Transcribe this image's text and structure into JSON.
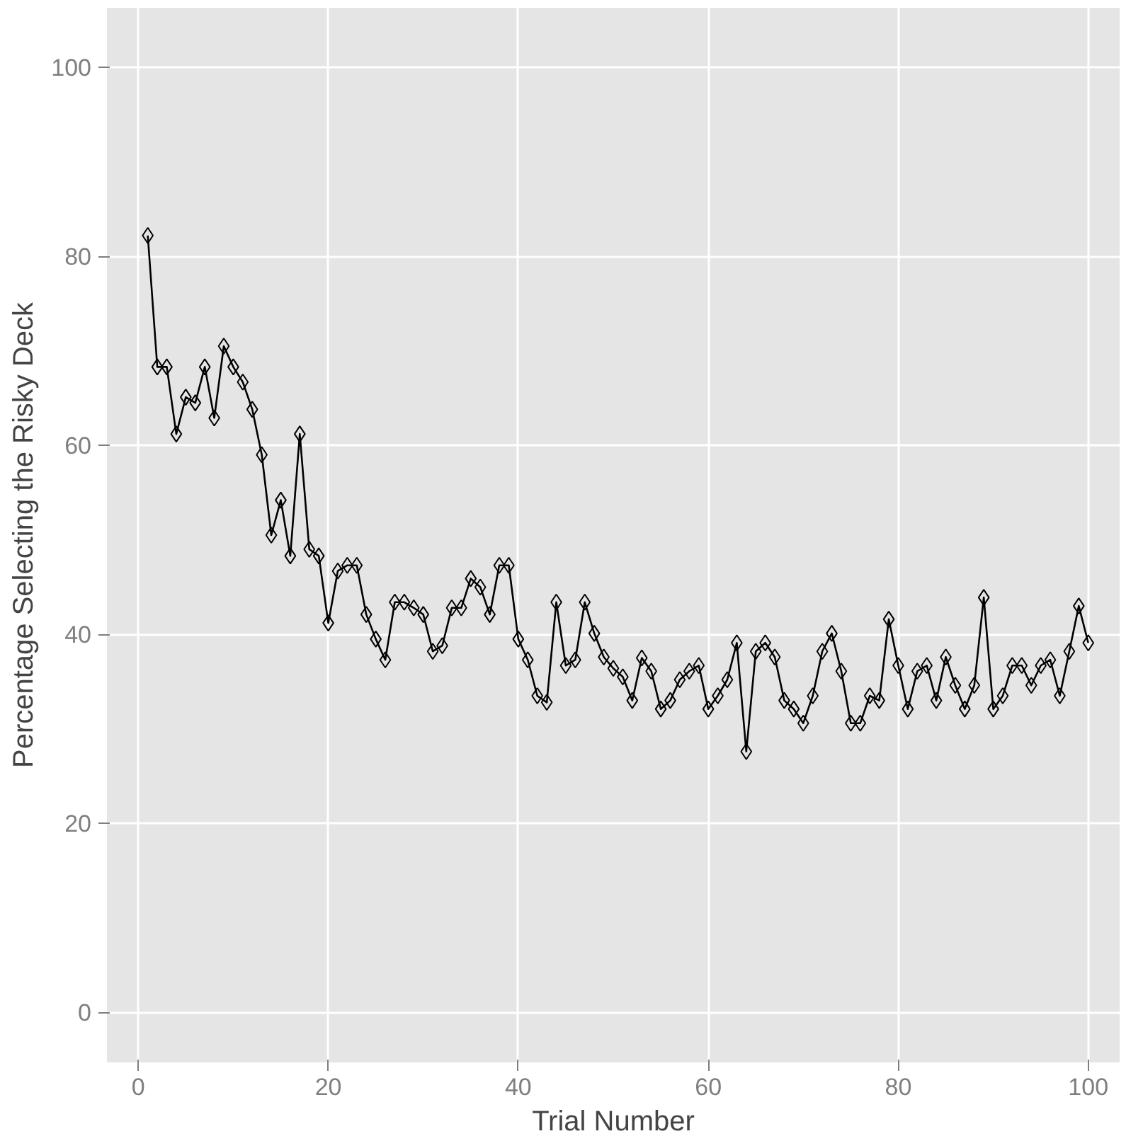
{
  "chart_data": {
    "type": "line",
    "xlabel": "Trial Number",
    "ylabel": "Percentage Selecting the Risky Deck",
    "x": [
      1,
      2,
      3,
      4,
      5,
      6,
      7,
      8,
      9,
      10,
      11,
      12,
      13,
      14,
      15,
      16,
      17,
      18,
      19,
      20,
      21,
      22,
      23,
      24,
      25,
      26,
      27,
      28,
      29,
      30,
      31,
      32,
      33,
      34,
      35,
      36,
      37,
      38,
      39,
      40,
      41,
      42,
      43,
      44,
      45,
      46,
      47,
      48,
      49,
      50,
      51,
      52,
      53,
      54,
      55,
      56,
      57,
      58,
      59,
      60,
      61,
      62,
      63,
      64,
      65,
      66,
      67,
      68,
      69,
      70,
      71,
      72,
      73,
      74,
      75,
      76,
      77,
      78,
      79,
      80,
      81,
      82,
      83,
      84,
      85,
      86,
      87,
      88,
      89,
      90,
      91,
      92,
      93,
      94,
      95,
      96,
      97,
      98,
      99,
      100
    ],
    "series": [
      {
        "color": "#000000",
        "values": [
          82.2,
          68.3,
          68.3,
          61.2,
          65.1,
          64.5,
          68.3,
          62.9,
          70.5,
          68.3,
          66.7,
          63.8,
          59.0,
          50.5,
          54.2,
          48.3,
          61.2,
          49.0,
          48.3,
          41.2,
          46.7,
          47.3,
          47.3,
          42.1,
          39.5,
          37.3,
          43.4,
          43.4,
          42.8,
          42.1,
          38.2,
          38.8,
          42.8,
          42.8,
          45.9,
          45.0,
          42.1,
          47.3,
          47.3,
          39.5,
          37.3,
          33.5,
          32.8,
          43.4,
          36.7,
          37.3,
          43.4,
          40.1,
          37.6,
          36.4,
          35.5,
          33.0,
          37.5,
          36.1,
          32.1,
          33.0,
          35.2,
          36.1,
          36.7,
          32.1,
          33.5,
          35.2,
          39.1,
          27.6,
          38.2,
          39.1,
          37.6,
          33.0,
          32.1,
          30.6,
          33.5,
          38.2,
          40.1,
          36.1,
          30.6,
          30.6,
          33.5,
          33.0,
          41.6,
          36.7,
          32.1,
          36.1,
          36.7,
          33.0,
          37.6,
          34.6,
          32.1,
          34.6,
          43.9,
          32.1,
          33.5,
          36.7,
          36.7,
          34.6,
          36.7,
          37.3,
          33.5,
          38.2,
          43.0,
          39.1
        ]
      }
    ],
    "xlim": [
      -3.3,
      103.3
    ],
    "ylim": [
      -5.3,
      106.3
    ],
    "xticks": [
      0,
      20,
      40,
      60,
      80,
      100
    ],
    "yticks": [
      0,
      20,
      40,
      60,
      80,
      100
    ],
    "grid": true,
    "marker": "diamond",
    "line_style": "solid"
  }
}
